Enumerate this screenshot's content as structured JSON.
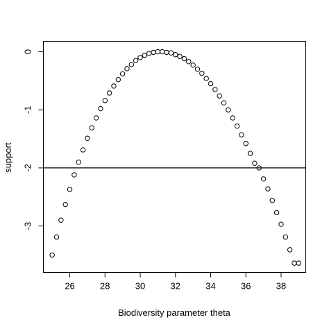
{
  "chart_data": {
    "type": "scatter",
    "title": "",
    "xlabel": "Biodiversity parameter theta",
    "ylabel": "support",
    "xlim": [
      24.5,
      39.4
    ],
    "ylim": [
      -3.8,
      0.18
    ],
    "x_ticks": [
      26,
      28,
      30,
      32,
      34,
      36,
      38
    ],
    "x_tick_labels": [
      "26",
      "28",
      "30",
      "32",
      "34",
      "36",
      "38"
    ],
    "y_ticks": [
      0,
      -1,
      -2,
      -3
    ],
    "y_tick_labels": [
      "0",
      "-1",
      "-2",
      "-3"
    ],
    "grid": false,
    "legend": "none",
    "reference_lines": [
      {
        "orientation": "horizontal",
        "y": -2
      }
    ],
    "series": [
      {
        "x": [
          25.0,
          25.25,
          25.5,
          25.75,
          26.0,
          26.25,
          26.5,
          26.75,
          27.0,
          27.25,
          27.5,
          27.75,
          28.0,
          28.25,
          28.5,
          28.75,
          29.0,
          29.25,
          29.5,
          29.75,
          30.0,
          30.25,
          30.5,
          30.75,
          31.0,
          31.25,
          31.5,
          31.75,
          32.0,
          32.25,
          32.5,
          32.75,
          33.0,
          33.25,
          33.5,
          33.75,
          34.0,
          34.25,
          34.5,
          34.75,
          35.0,
          35.25,
          35.5,
          35.75,
          36.0,
          36.25,
          36.5,
          36.75,
          37.0,
          37.25,
          37.5,
          37.75,
          38.0,
          38.25,
          38.5,
          38.75,
          39.0
        ],
        "y": [
          -3.5,
          -3.19,
          -2.9,
          -2.63,
          -2.37,
          -2.12,
          -1.9,
          -1.69,
          -1.49,
          -1.31,
          -1.14,
          -0.98,
          -0.84,
          -0.71,
          -0.59,
          -0.48,
          -0.38,
          -0.29,
          -0.22,
          -0.15,
          -0.1,
          -0.06,
          -0.03,
          -0.01,
          0.0,
          0.0,
          -0.01,
          -0.02,
          -0.05,
          -0.08,
          -0.12,
          -0.17,
          -0.23,
          -0.3,
          -0.37,
          -0.46,
          -0.55,
          -0.65,
          -0.76,
          -0.88,
          -1.0,
          -1.14,
          -1.28,
          -1.43,
          -1.58,
          -1.75,
          -1.92,
          -2.0,
          -2.19,
          -2.36,
          -2.56,
          -2.77,
          -2.97,
          -3.19,
          -3.41,
          -3.64,
          -3.64
        ]
      }
    ]
  }
}
